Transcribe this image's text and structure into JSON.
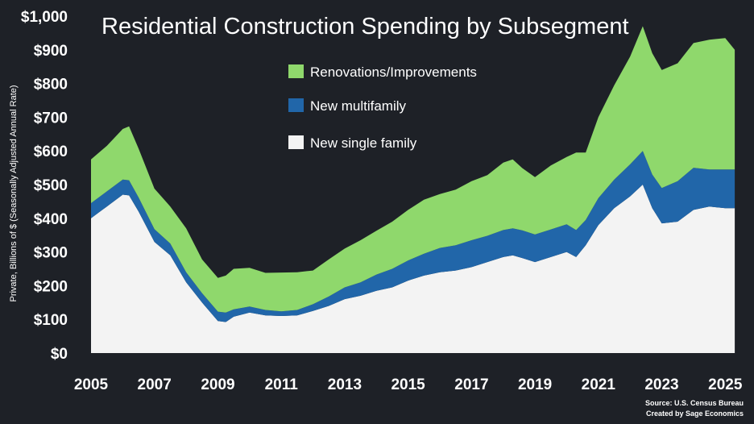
{
  "chart_data": {
    "type": "area",
    "title": "Residential Construction Spending by Subsegment",
    "ylabel": "Private, Billions of $ (Seasonally Adjusted Annual Rate)",
    "xlabel": "",
    "ylim": [
      0,
      1000
    ],
    "xlim": [
      2005,
      2025.4
    ],
    "stacked": true,
    "yticks": [
      0,
      100,
      200,
      300,
      400,
      500,
      600,
      700,
      800,
      900,
      1000
    ],
    "ytick_labels": [
      "$0",
      "$100",
      "$200",
      "$300",
      "$400",
      "$500",
      "$600",
      "$700",
      "$800",
      "$900",
      "$1,000"
    ],
    "xticks": [
      2005,
      2007,
      2009,
      2011,
      2013,
      2015,
      2017,
      2019,
      2021,
      2023,
      2025
    ],
    "xtick_labels": [
      "2005",
      "2007",
      "2009",
      "2011",
      "2013",
      "2015",
      "2017",
      "2019",
      "2021",
      "2023",
      "2025"
    ],
    "legend": [
      {
        "name": "Renovations/Improvements",
        "color": "#8fd86c"
      },
      {
        "name": "New multifamily",
        "color": "#2166a9"
      },
      {
        "name": "New single family",
        "color": "#f3f3f3"
      }
    ],
    "x": [
      2005.0,
      2005.5,
      2006.0,
      2006.2,
      2006.5,
      2007.0,
      2007.5,
      2008.0,
      2008.5,
      2009.0,
      2009.25,
      2009.5,
      2010.0,
      2010.5,
      2011.0,
      2011.5,
      2012.0,
      2012.5,
      2013.0,
      2013.5,
      2014.0,
      2014.5,
      2015.0,
      2015.5,
      2016.0,
      2016.5,
      2017.0,
      2017.5,
      2018.0,
      2018.3,
      2018.6,
      2019.0,
      2019.5,
      2020.0,
      2020.3,
      2020.6,
      2021.0,
      2021.5,
      2022.0,
      2022.4,
      2022.7,
      2023.0,
      2023.5,
      2024.0,
      2024.5,
      2025.0,
      2025.3
    ],
    "series": [
      {
        "name": "New single family",
        "values": [
          400,
          435,
          470,
          468,
          420,
          330,
          290,
          210,
          150,
          95,
          92,
          108,
          120,
          112,
          110,
          112,
          125,
          140,
          160,
          170,
          185,
          195,
          215,
          230,
          240,
          245,
          255,
          270,
          285,
          290,
          282,
          270,
          285,
          300,
          285,
          320,
          380,
          430,
          465,
          500,
          430,
          385,
          390,
          425,
          435,
          430,
          430
        ]
      },
      {
        "name": "New multifamily",
        "values": [
          45,
          45,
          45,
          45,
          42,
          38,
          35,
          30,
          28,
          28,
          28,
          22,
          18,
          16,
          14,
          16,
          20,
          28,
          35,
          40,
          48,
          55,
          60,
          65,
          72,
          75,
          80,
          78,
          80,
          80,
          82,
          82,
          82,
          82,
          80,
          75,
          80,
          85,
          95,
          100,
          100,
          105,
          120,
          125,
          110,
          115,
          115
        ]
      },
      {
        "name": "Renovations/Improvements",
        "values": [
          130,
          135,
          150,
          160,
          145,
          120,
          110,
          130,
          100,
          100,
          110,
          120,
          115,
          110,
          115,
          112,
          100,
          110,
          115,
          125,
          130,
          140,
          150,
          160,
          160,
          165,
          175,
          180,
          200,
          205,
          185,
          170,
          190,
          200,
          230,
          200,
          240,
          280,
          320,
          370,
          360,
          350,
          350,
          370,
          385,
          390,
          355
        ]
      }
    ],
    "source_lines": [
      "Source: U.S. Census Bureau",
      "Created by Sage Economics"
    ]
  }
}
